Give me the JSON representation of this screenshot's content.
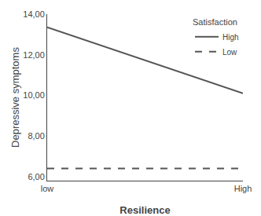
{
  "chart_data": {
    "type": "line",
    "xlabel": "Resilience",
    "ylabel": "Depressive symptoms",
    "categories": [
      "low",
      "High"
    ],
    "legend_title": "Satisfaction",
    "series": [
      {
        "name": "High",
        "color": "#555555",
        "line_style": "solid",
        "values": [
          13.35,
          10.1
        ]
      },
      {
        "name": "Low",
        "color": "#555555",
        "line_style": "dashed",
        "values": [
          6.4,
          6.4
        ]
      }
    ],
    "ylim": [
      5.8,
      14.0
    ],
    "yticks": [
      {
        "value": 6.0,
        "label": "6,00"
      },
      {
        "value": 8.0,
        "label": "8,00"
      },
      {
        "value": 10.0,
        "label": "10,00"
      },
      {
        "value": 12.0,
        "label": "12,00"
      },
      {
        "value": 14.0,
        "label": "14,00"
      }
    ],
    "grid": false,
    "legend": "upper right"
  }
}
